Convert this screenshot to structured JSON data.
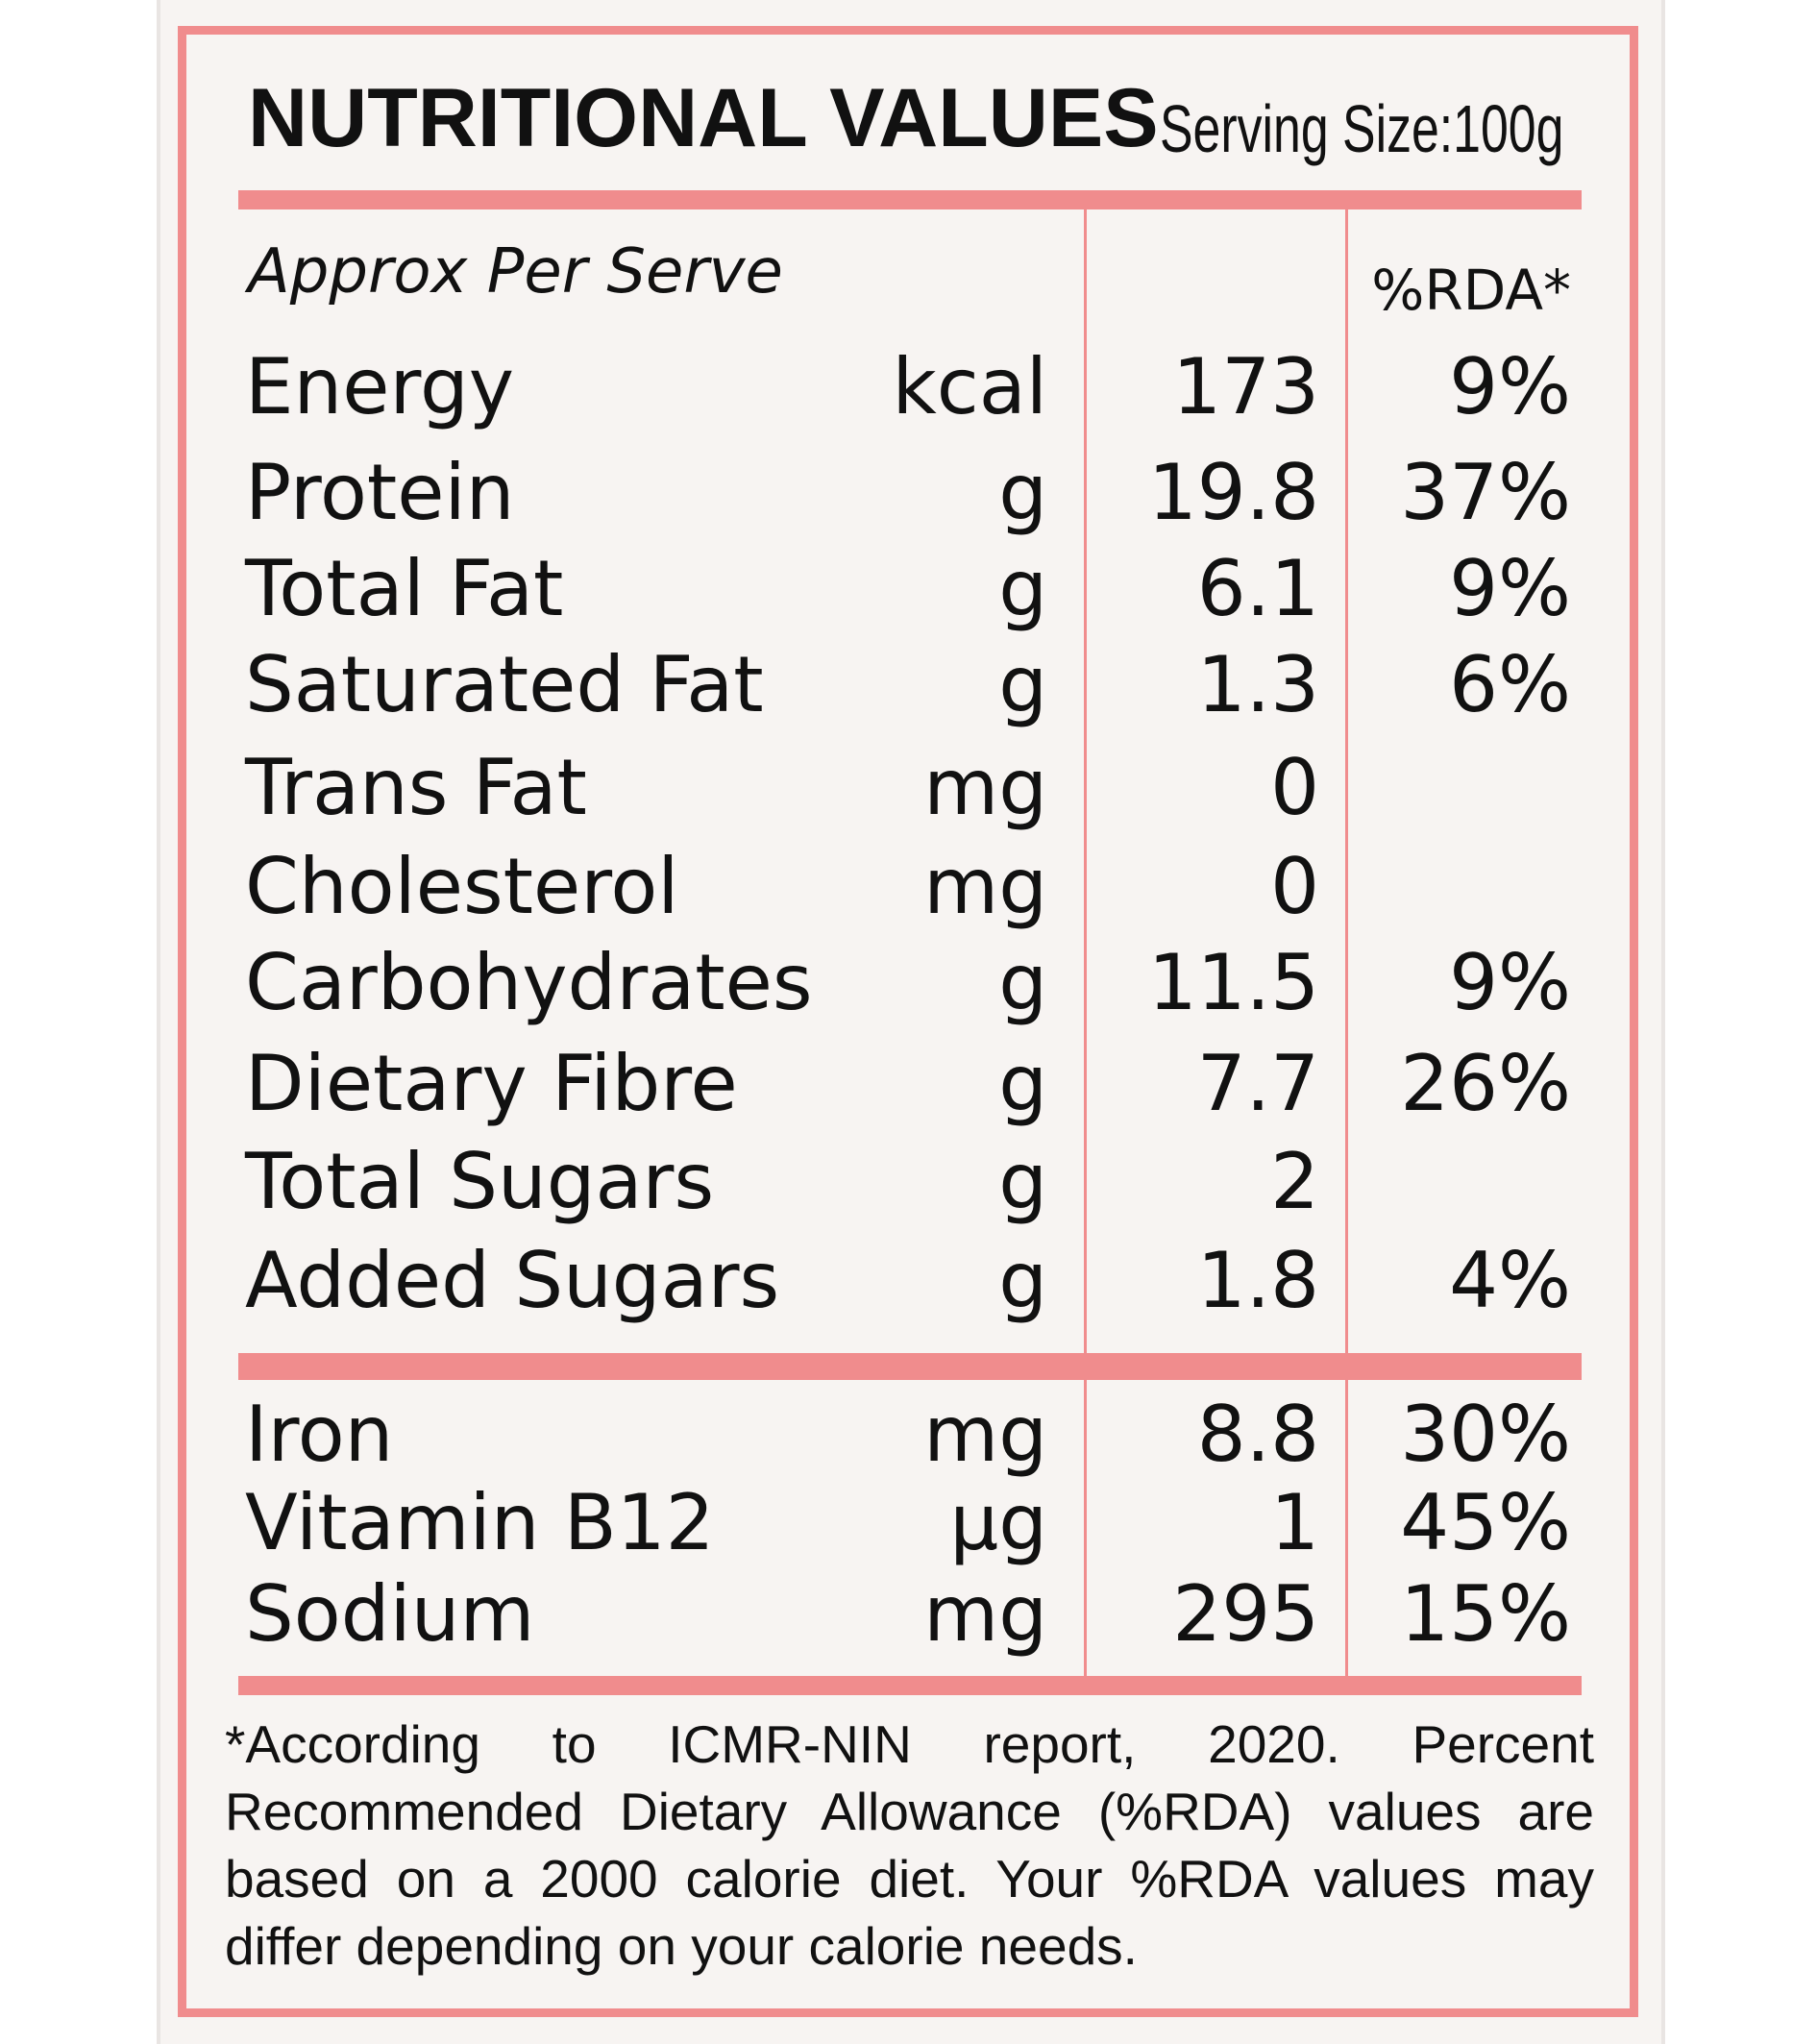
{
  "header": {
    "title": "NUTRITIONAL VALUES",
    "serving_size": "Serving Size:100g"
  },
  "table": {
    "subheading": "Approx Per Serve",
    "rda_header": "%RDA*",
    "main_rows": [
      {
        "name": "Energy",
        "unit": "kcal",
        "value": "173",
        "rda": "9%"
      },
      {
        "name": "Protein",
        "unit": "g",
        "value": "19.8",
        "rda": "37%"
      },
      {
        "name": "Total Fat",
        "unit": "g",
        "value": "6.1",
        "rda": "9%"
      },
      {
        "name": "Saturated Fat",
        "unit": "g",
        "value": "1.3",
        "rda": "6%"
      },
      {
        "name": "Trans Fat",
        "unit": "mg",
        "value": "0",
        "rda": ""
      },
      {
        "name": "Cholesterol",
        "unit": "mg",
        "value": "0",
        "rda": ""
      },
      {
        "name": "Carbohydrates",
        "unit": "g",
        "value": "11.5",
        "rda": "9%"
      },
      {
        "name": "Dietary Fibre",
        "unit": "g",
        "value": "7.7",
        "rda": "26%"
      },
      {
        "name": "Total Sugars",
        "unit": "g",
        "value": "2",
        "rda": ""
      },
      {
        "name": "Added Sugars",
        "unit": "g",
        "value": "1.8",
        "rda": "4%"
      }
    ],
    "mineral_rows": [
      {
        "name": "Iron",
        "unit": "mg",
        "value": "8.8",
        "rda": "30%"
      },
      {
        "name": "Vitamin B12",
        "unit": "µg",
        "value": "1",
        "rda": "45%"
      },
      {
        "name": "Sodium",
        "unit": "mg",
        "value": "295",
        "rda": "15%"
      }
    ]
  },
  "footnote": "*According to ICMR-NIN report, 2020. Percent Recommended Dietary Allowance (%RDA) values are based on a 2000 calorie diet. Your %RDA values may differ depending on your calorie needs.",
  "colors": {
    "accent": "#f08c8d",
    "background": "#f7f4f2",
    "text": "#111111"
  }
}
